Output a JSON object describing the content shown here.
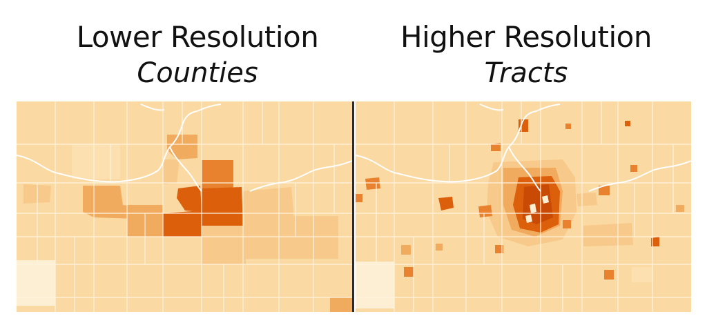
{
  "panels": [
    {
      "title": "Lower Resolution",
      "subtitle": "Counties"
    },
    {
      "title": "Higher Resolution",
      "subtitle": "Tracts"
    }
  ],
  "colors": {
    "base": "#fbd9a3",
    "pale": "#fdefd3",
    "light": "#f7c98a",
    "medium": "#f0ab5f",
    "strong": "#e8822f",
    "dark": "#dc5f0c",
    "darkest": "#c84a05",
    "county_line": "#fff3e0",
    "divider": "#2b2b2b"
  }
}
